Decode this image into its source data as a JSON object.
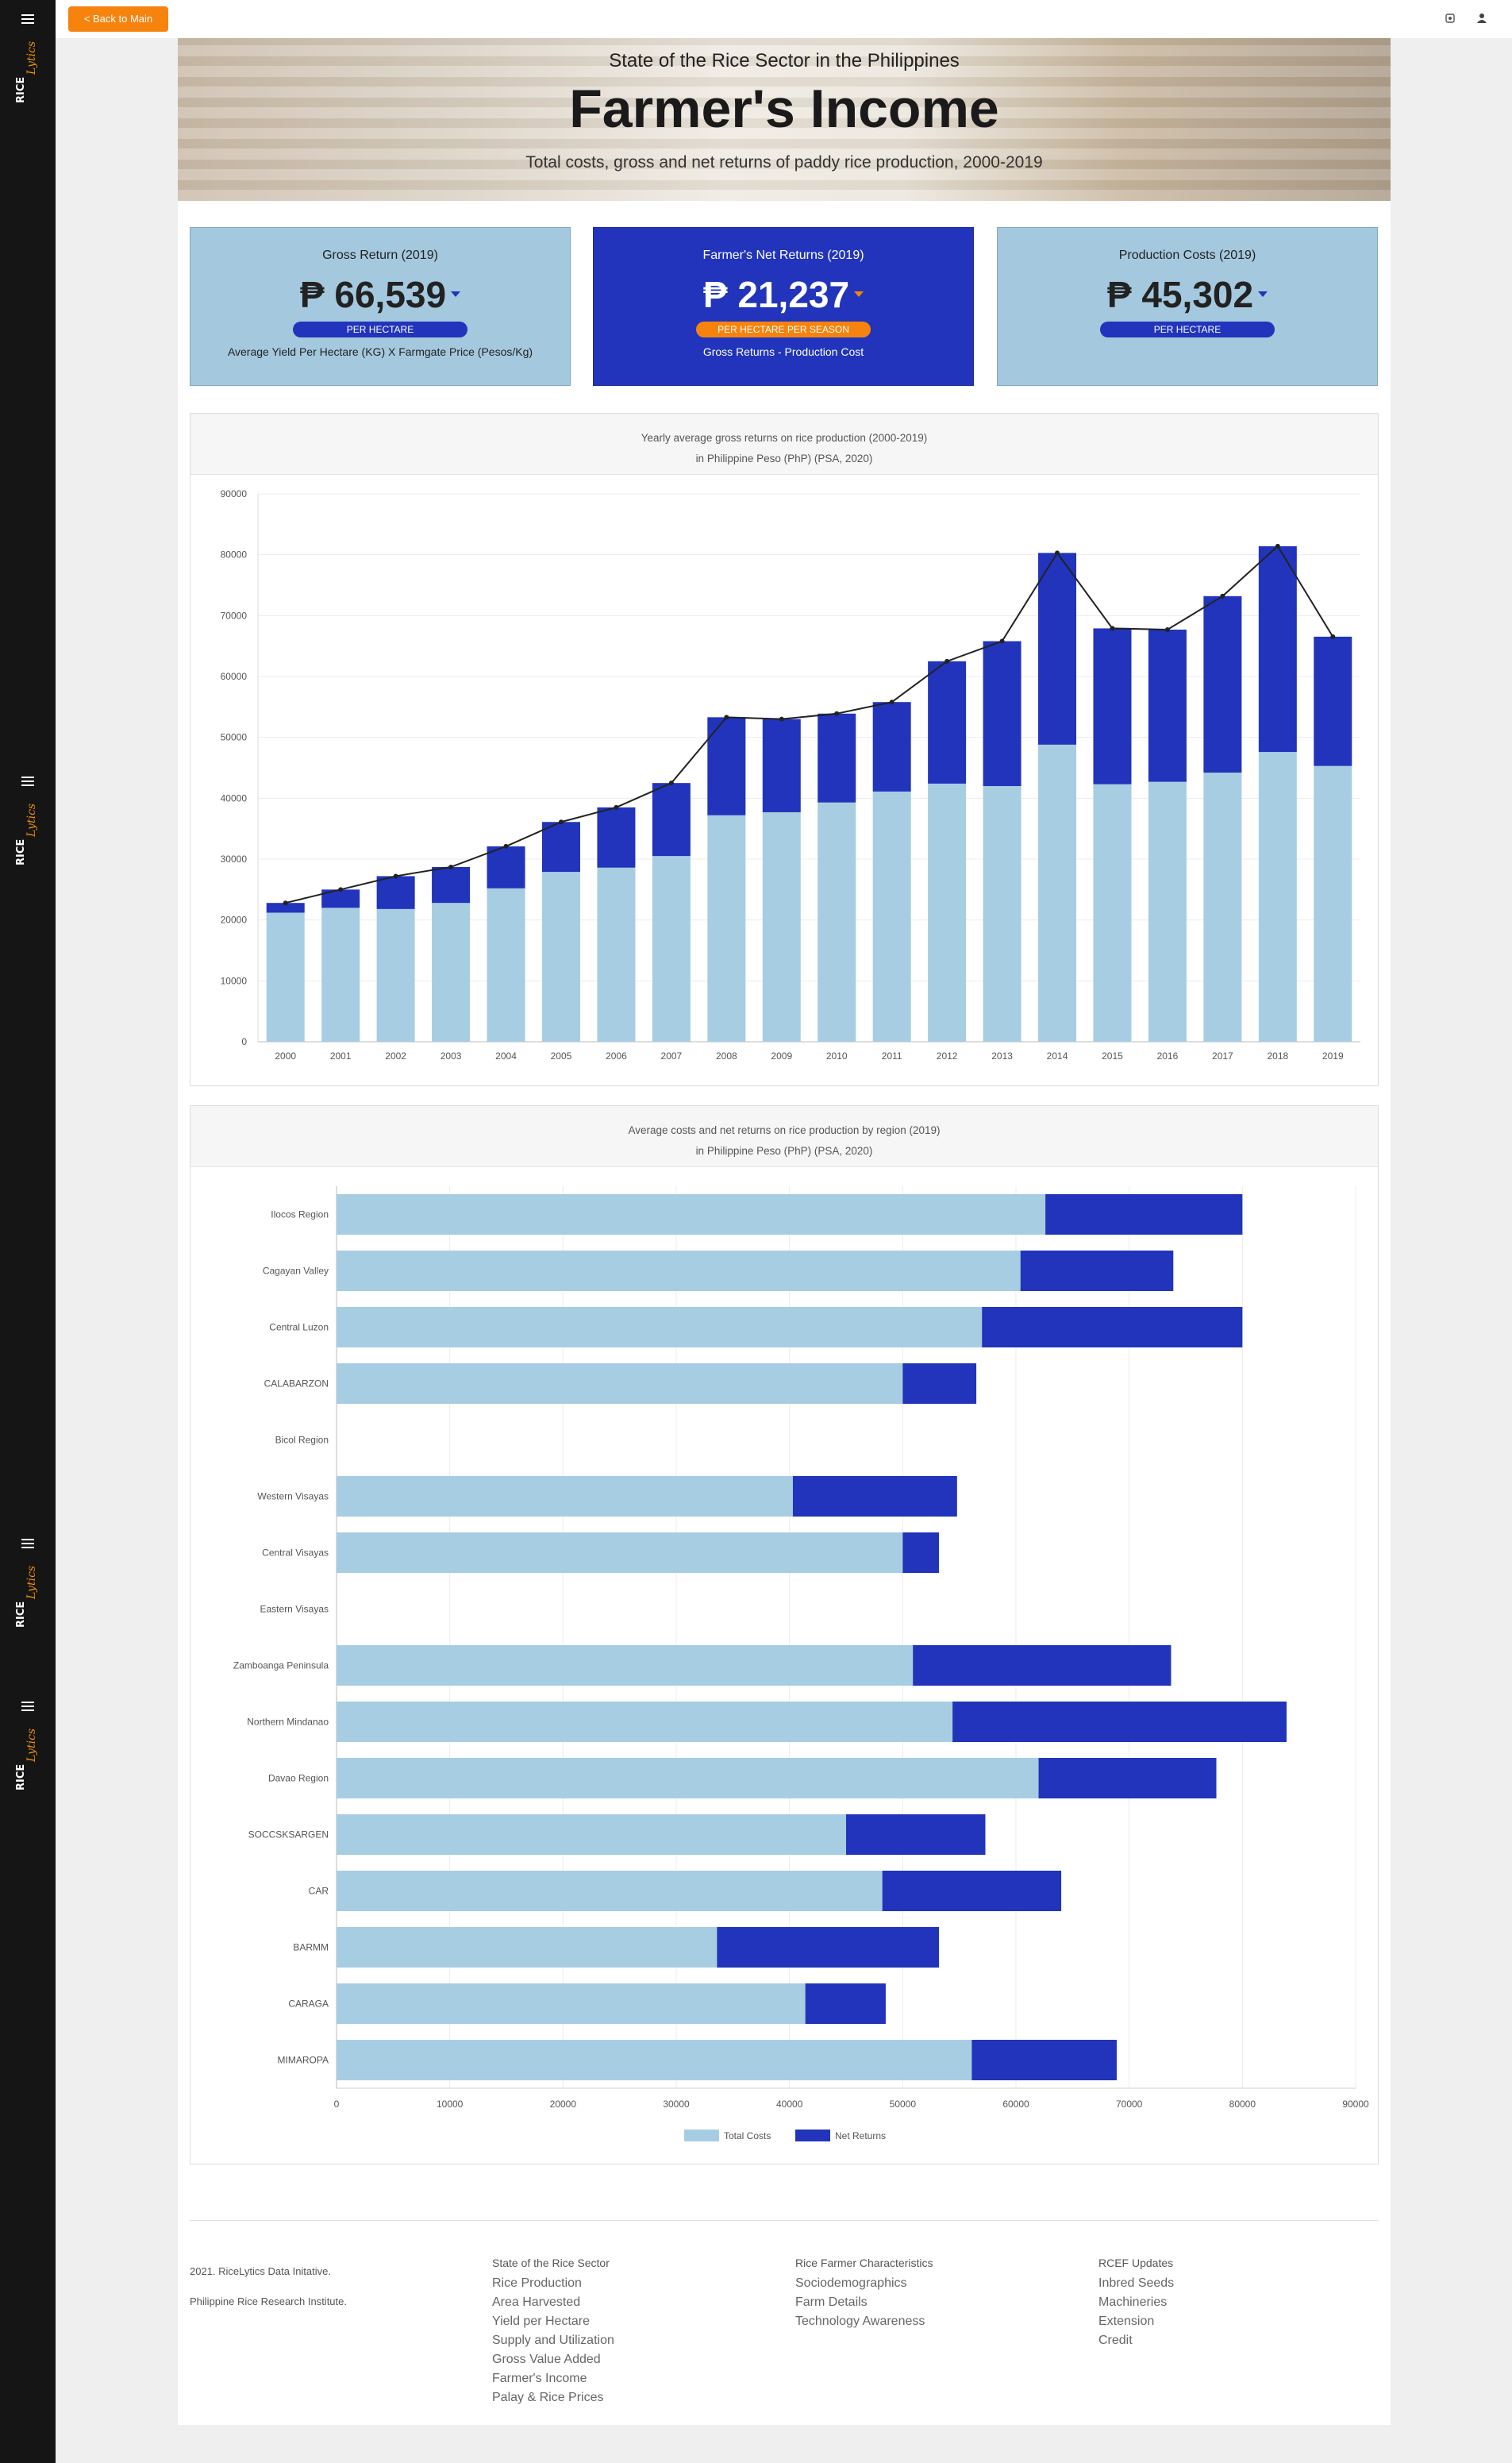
{
  "sidebar": {
    "logo_text": "RICE",
    "logo_script": "Lytics"
  },
  "topbar": {
    "back_label": "< Back to Main",
    "icons": [
      "settings-icon",
      "user-icon"
    ]
  },
  "banner": {
    "subtitle": "State of the Rice Sector in the Philippines",
    "title": "Farmer's Income",
    "description": "Total costs, gross and net returns of paddy rice production, 2000-2019"
  },
  "kpis": [
    {
      "title": "Gross Return (2019)",
      "value": "₱ 66,539",
      "badge": "PER HECTARE",
      "note": "Average Yield Per Hectare (KG) X Farmgate Price (Pesos/Kg)",
      "style": "light",
      "caret_color": "#2134bb",
      "badge_color": "#2134bb"
    },
    {
      "title": "Farmer's Net Returns (2019)",
      "value": "₱ 21,237",
      "badge": "PER HECTARE PER SEASON",
      "note": "Gross Returns - Production Cost",
      "style": "dark",
      "caret_color": "#f7830f",
      "badge_color": "#f7830f"
    },
    {
      "title": "Production Costs (2019)",
      "value": "₱ 45,302",
      "badge": "PER HECTARE",
      "note": "",
      "style": "light",
      "caret_color": "#2134bb",
      "badge_color": "#2134bb"
    }
  ],
  "chart1_head": {
    "line1": "Yearly average gross returns on rice production (2000-2019)",
    "line2": "in Philippine Peso (PhP) (PSA, 2020)"
  },
  "chart2_head": {
    "line1": "Average costs and net returns on rice production by region (2019)",
    "line2": "in Philippine Peso (PhP) (PSA, 2020)"
  },
  "chart_data": [
    {
      "type": "bar",
      "stacked": true,
      "title": "Yearly average gross returns on rice production (2000-2019)",
      "subtitle": "in Philippine Peso (PhP) (PSA, 2020)",
      "categories": [
        "2000",
        "2001",
        "2002",
        "2003",
        "2004",
        "2005",
        "2006",
        "2007",
        "2008",
        "2009",
        "2010",
        "2011",
        "2012",
        "2013",
        "2014",
        "2015",
        "2016",
        "2017",
        "2018",
        "2019"
      ],
      "series": [
        {
          "color": "#a7cde2",
          "values": [
            21200,
            22000,
            21800,
            22800,
            25200,
            27900,
            28600,
            30500,
            37200,
            37700,
            39300,
            41100,
            42400,
            42000,
            48800,
            42300,
            42700,
            44200,
            47600,
            45302
          ]
        },
        {
          "color": "#2134bb",
          "values": [
            1600,
            3000,
            5400,
            5900,
            6900,
            8200,
            9900,
            12000,
            16100,
            15300,
            14600,
            14700,
            20100,
            23800,
            31500,
            25600,
            25000,
            29000,
            33800,
            21237
          ]
        }
      ],
      "line": {
        "color": "#222222",
        "values": [
          22800,
          25000,
          27200,
          28700,
          32100,
          36100,
          38500,
          42500,
          53300,
          53000,
          53900,
          55800,
          62500,
          65800,
          80300,
          67900,
          67700,
          73200,
          81400,
          66539
        ]
      },
      "ylim": [
        0,
        90000
      ],
      "yticks": [
        0,
        10000,
        20000,
        30000,
        40000,
        50000,
        60000,
        70000,
        80000,
        90000
      ],
      "grid": true
    },
    {
      "type": "bar",
      "orientation": "horizontal",
      "stacked": true,
      "title": "Average costs and net returns on rice production by region (2019)",
      "subtitle": "in Philippine Peso (PhP) (PSA, 2020)",
      "categories": [
        "Ilocos Region",
        "Cagayan Valley",
        "Central Luzon",
        "CALABARZON",
        "Bicol Region",
        "Western Visayas",
        "Central Visayas",
        "Eastern Visayas",
        "Zamboanga Peninsula",
        "Northern Mindanao",
        "Davao Region",
        "SOCCSKSARGEN",
        "CAR",
        "BARMM",
        "CARAGA",
        "MIMAROPA"
      ],
      "series": [
        {
          "name": "Total Costs",
          "color": "#a7cde2",
          "values": [
            62600,
            60400,
            57000,
            50000,
            null,
            40300,
            50000,
            null,
            50900,
            54400,
            62000,
            45000,
            48200,
            33600,
            41400,
            56100
          ]
        },
        {
          "name": "Net Returns",
          "color": "#2134bb",
          "values": [
            17400,
            13500,
            23000,
            6500,
            null,
            14500,
            3200,
            null,
            22800,
            29500,
            15700,
            12300,
            15800,
            19600,
            7100,
            12800
          ]
        }
      ],
      "xlim": [
        0,
        90000
      ],
      "xticks": [
        0,
        10000,
        20000,
        30000,
        40000,
        50000,
        60000,
        70000,
        80000,
        90000
      ],
      "legend": "bottom-center",
      "grid": true
    }
  ],
  "footer": {
    "copyright": "2021. RiceLytics Data Initative.",
    "institute": "Philippine Rice Research Institute.",
    "columns": [
      {
        "heading": "State of the Rice Sector",
        "links": [
          "Rice Production",
          "Area Harvested",
          "Yield per Hectare",
          "Supply and Utilization",
          "Gross Value Added",
          "Farmer's Income",
          "Palay & Rice Prices"
        ]
      },
      {
        "heading": "Rice Farmer Characteristics",
        "links": [
          "Sociodemographics",
          "Farm Details",
          "Technology Awareness"
        ]
      },
      {
        "heading": "RCEF Updates",
        "links": [
          "Inbred Seeds",
          "Machineries",
          "Extension",
          "Credit"
        ]
      }
    ]
  }
}
